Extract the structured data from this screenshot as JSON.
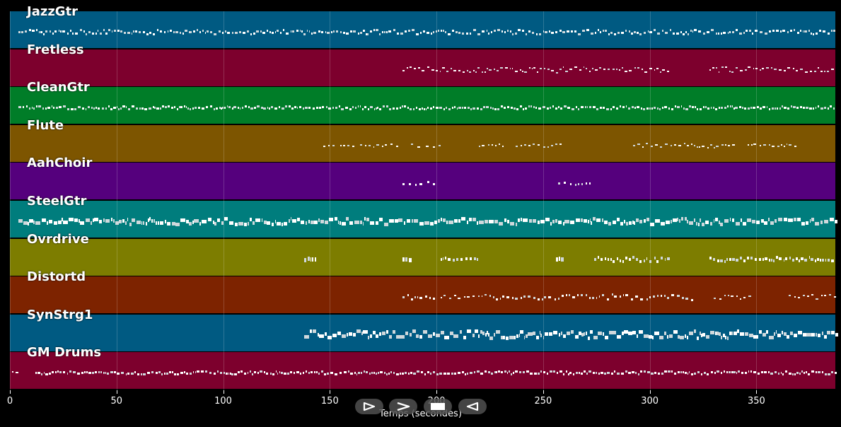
{
  "tracks": [
    {
      "name": "JazzGtr",
      "color": "#005a82"
    },
    {
      "name": "Fretless",
      "color": "#7d002d"
    },
    {
      "name": "CleanGtr",
      "color": "#007d28"
    },
    {
      "name": "Flute",
      "color": "#7d5500"
    },
    {
      "name": "AahChoir",
      "color": "#55007d"
    },
    {
      "name": "SteelGtr",
      "color": "#007d7d"
    },
    {
      "name": "Ovrdrive",
      "color": "#7d7d00"
    },
    {
      "name": "Distortd",
      "color": "#7d2300"
    },
    {
      "name": "SynStrg1",
      "color": "#005a82"
    },
    {
      "name": "GM Drums",
      "color": "#7d002d"
    }
  ],
  "axis": {
    "ticks": [
      "0",
      "50",
      "100",
      "150",
      "200",
      "250",
      "300",
      "350"
    ],
    "label": "Temps (secondes)",
    "max_seconds": 387
  },
  "controls": {
    "play_icon": "play-icon",
    "forward_icon": "forward-icon",
    "stop_icon": "stop-icon",
    "rewind_icon": "rewind-icon"
  }
}
